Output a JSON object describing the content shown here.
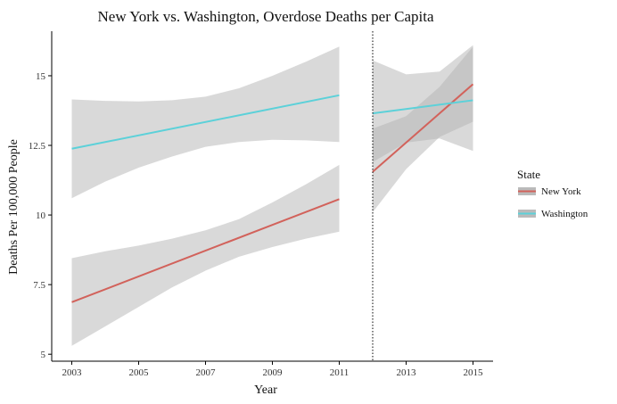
{
  "chart_data": {
    "type": "line",
    "title": "New York vs. Washington, Overdose Deaths per Capita",
    "xlabel": "Year",
    "ylabel": "Deaths Per 100,000 People",
    "xlim": [
      2002.4,
      2015.6
    ],
    "ylim": [
      4.75,
      16.6
    ],
    "x_ticks": [
      2003,
      2005,
      2007,
      2009,
      2011,
      2013,
      2015
    ],
    "y_ticks": [
      5,
      7.5,
      10,
      12.5,
      15
    ],
    "y_tick_labels": [
      "5",
      "7.5",
      "10",
      "12.5",
      "15"
    ],
    "vline": {
      "x": 2012,
      "style": "dotted"
    },
    "legend": {
      "title": "State",
      "position": "right"
    },
    "grid": false,
    "ribbon_color": "#b3b3b3",
    "segments": [
      {
        "name": "New York",
        "color": "#d2625b",
        "line": [
          [
            2003,
            6.87
          ],
          [
            2011,
            10.57
          ]
        ],
        "band": [
          [
            2003,
            5.3,
            8.45
          ],
          [
            2004,
            6.0,
            8.7
          ],
          [
            2005,
            6.7,
            8.9
          ],
          [
            2006,
            7.4,
            9.15
          ],
          [
            2007,
            8.0,
            9.45
          ],
          [
            2008,
            8.5,
            9.85
          ],
          [
            2009,
            8.85,
            10.45
          ],
          [
            2010,
            9.15,
            11.1
          ],
          [
            2011,
            9.4,
            11.8
          ]
        ]
      },
      {
        "name": "Washington",
        "color": "#5cd1d9",
        "line": [
          [
            2003,
            12.38
          ],
          [
            2011,
            14.3
          ]
        ],
        "band": [
          [
            2003,
            10.6,
            14.15
          ],
          [
            2004,
            11.2,
            14.1
          ],
          [
            2005,
            11.7,
            14.08
          ],
          [
            2006,
            12.1,
            14.12
          ],
          [
            2007,
            12.45,
            14.25
          ],
          [
            2008,
            12.62,
            14.55
          ],
          [
            2009,
            12.7,
            15.0
          ],
          [
            2010,
            12.68,
            15.5
          ],
          [
            2011,
            12.62,
            16.05
          ]
        ]
      },
      {
        "name": "New York",
        "color": "#d2625b",
        "line": [
          [
            2012,
            11.55
          ],
          [
            2015,
            14.7
          ]
        ],
        "band": [
          [
            2012,
            10.1,
            13.1
          ],
          [
            2013,
            11.65,
            13.55
          ],
          [
            2014,
            12.8,
            14.6
          ],
          [
            2015,
            13.35,
            16.05
          ]
        ]
      },
      {
        "name": "Washington",
        "color": "#5cd1d9",
        "line": [
          [
            2012,
            13.65
          ],
          [
            2015,
            14.12
          ]
        ],
        "band": [
          [
            2012,
            11.9,
            15.55
          ],
          [
            2013,
            12.6,
            15.05
          ],
          [
            2014,
            12.75,
            15.15
          ],
          [
            2015,
            12.3,
            16.1
          ]
        ]
      }
    ],
    "series": [
      {
        "name": "New York",
        "color": "#d2625b"
      },
      {
        "name": "Washington",
        "color": "#5cd1d9"
      }
    ]
  }
}
